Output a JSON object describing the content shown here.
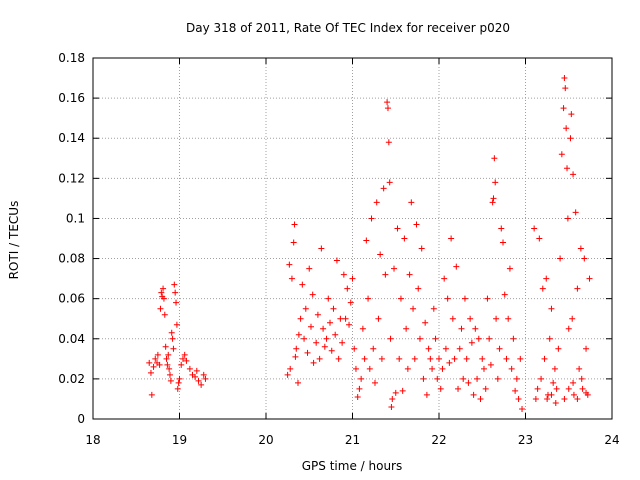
{
  "chart_data": {
    "type": "scatter",
    "title": "Day 318 of 2011, Rate Of TEC Index for receiver p020",
    "xlabel": "GPS time / hours",
    "ylabel": "ROTI / TECUs",
    "xlim": [
      18,
      24
    ],
    "ylim": [
      0,
      0.18
    ],
    "xticks": [
      "18",
      "19",
      "20",
      "21",
      "22",
      "23",
      "24"
    ],
    "yticks": [
      "0",
      "0.02",
      "0.04",
      "0.06",
      "0.08",
      "0.1",
      "0.12",
      "0.14",
      "0.16",
      "0.18"
    ],
    "grid": true,
    "marker": "+",
    "color": "#ff0000",
    "points": [
      [
        18.65,
        0.028
      ],
      [
        18.67,
        0.023
      ],
      [
        18.68,
        0.012
      ],
      [
        18.7,
        0.026
      ],
      [
        18.72,
        0.03
      ],
      [
        18.74,
        0.028
      ],
      [
        18.75,
        0.032
      ],
      [
        18.77,
        0.027
      ],
      [
        18.78,
        0.055
      ],
      [
        18.79,
        0.063
      ],
      [
        18.8,
        0.061
      ],
      [
        18.81,
        0.065
      ],
      [
        18.82,
        0.06
      ],
      [
        18.83,
        0.052
      ],
      [
        18.84,
        0.036
      ],
      [
        18.85,
        0.03
      ],
      [
        18.86,
        0.027
      ],
      [
        18.87,
        0.032
      ],
      [
        18.88,
        0.025
      ],
      [
        18.89,
        0.022
      ],
      [
        18.9,
        0.019
      ],
      [
        18.91,
        0.043
      ],
      [
        18.92,
        0.04
      ],
      [
        18.93,
        0.035
      ],
      [
        18.94,
        0.067
      ],
      [
        18.95,
        0.063
      ],
      [
        18.96,
        0.058
      ],
      [
        18.97,
        0.047
      ],
      [
        18.98,
        0.015
      ],
      [
        18.99,
        0.018
      ],
      [
        19.0,
        0.02
      ],
      [
        19.02,
        0.027
      ],
      [
        19.04,
        0.03
      ],
      [
        19.06,
        0.032
      ],
      [
        19.08,
        0.029
      ],
      [
        19.12,
        0.025
      ],
      [
        19.15,
        0.022
      ],
      [
        19.18,
        0.021
      ],
      [
        19.2,
        0.024
      ],
      [
        19.22,
        0.019
      ],
      [
        19.25,
        0.017
      ],
      [
        19.28,
        0.022
      ],
      [
        19.3,
        0.02
      ],
      [
        20.25,
        0.022
      ],
      [
        20.27,
        0.077
      ],
      [
        20.28,
        0.025
      ],
      [
        20.3,
        0.07
      ],
      [
        20.32,
        0.088
      ],
      [
        20.33,
        0.097
      ],
      [
        20.34,
        0.031
      ],
      [
        20.35,
        0.035
      ],
      [
        20.37,
        0.018
      ],
      [
        20.38,
        0.042
      ],
      [
        20.4,
        0.05
      ],
      [
        20.42,
        0.067
      ],
      [
        20.44,
        0.04
      ],
      [
        20.46,
        0.055
      ],
      [
        20.48,
        0.033
      ],
      [
        20.5,
        0.075
      ],
      [
        20.52,
        0.046
      ],
      [
        20.54,
        0.062
      ],
      [
        20.55,
        0.028
      ],
      [
        20.58,
        0.038
      ],
      [
        20.6,
        0.052
      ],
      [
        20.62,
        0.03
      ],
      [
        20.64,
        0.085
      ],
      [
        20.66,
        0.045
      ],
      [
        20.68,
        0.036
      ],
      [
        20.7,
        0.04
      ],
      [
        20.72,
        0.06
      ],
      [
        20.74,
        0.048
      ],
      [
        20.76,
        0.034
      ],
      [
        20.78,
        0.055
      ],
      [
        20.8,
        0.042
      ],
      [
        20.82,
        0.079
      ],
      [
        20.84,
        0.03
      ],
      [
        20.86,
        0.05
      ],
      [
        20.88,
        0.038
      ],
      [
        20.9,
        0.072
      ],
      [
        20.92,
        0.05
      ],
      [
        20.94,
        0.065
      ],
      [
        20.96,
        0.047
      ],
      [
        20.98,
        0.058
      ],
      [
        21.0,
        0.07
      ],
      [
        21.02,
        0.035
      ],
      [
        21.04,
        0.025
      ],
      [
        21.06,
        0.011
      ],
      [
        21.08,
        0.015
      ],
      [
        21.1,
        0.02
      ],
      [
        21.12,
        0.045
      ],
      [
        21.14,
        0.03
      ],
      [
        21.16,
        0.089
      ],
      [
        21.18,
        0.06
      ],
      [
        21.2,
        0.025
      ],
      [
        21.22,
        0.1
      ],
      [
        21.24,
        0.035
      ],
      [
        21.26,
        0.018
      ],
      [
        21.28,
        0.108
      ],
      [
        21.3,
        0.05
      ],
      [
        21.32,
        0.082
      ],
      [
        21.34,
        0.03
      ],
      [
        21.36,
        0.115
      ],
      [
        21.38,
        0.072
      ],
      [
        21.4,
        0.158
      ],
      [
        21.41,
        0.155
      ],
      [
        21.42,
        0.138
      ],
      [
        21.43,
        0.118
      ],
      [
        21.44,
        0.04
      ],
      [
        21.45,
        0.006
      ],
      [
        21.46,
        0.01
      ],
      [
        21.48,
        0.075
      ],
      [
        21.5,
        0.013
      ],
      [
        21.52,
        0.095
      ],
      [
        21.54,
        0.03
      ],
      [
        21.56,
        0.06
      ],
      [
        21.58,
        0.014
      ],
      [
        21.6,
        0.09
      ],
      [
        21.62,
        0.045
      ],
      [
        21.64,
        0.025
      ],
      [
        21.66,
        0.072
      ],
      [
        21.68,
        0.108
      ],
      [
        21.7,
        0.055
      ],
      [
        21.72,
        0.03
      ],
      [
        21.74,
        0.097
      ],
      [
        21.76,
        0.065
      ],
      [
        21.78,
        0.04
      ],
      [
        21.8,
        0.085
      ],
      [
        21.82,
        0.02
      ],
      [
        21.84,
        0.048
      ],
      [
        21.86,
        0.012
      ],
      [
        21.88,
        0.035
      ],
      [
        21.9,
        0.03
      ],
      [
        21.92,
        0.025
      ],
      [
        21.94,
        0.055
      ],
      [
        21.96,
        0.04
      ],
      [
        21.98,
        0.02
      ],
      [
        22.0,
        0.03
      ],
      [
        22.02,
        0.015
      ],
      [
        22.04,
        0.025
      ],
      [
        22.06,
        0.07
      ],
      [
        22.08,
        0.035
      ],
      [
        22.1,
        0.06
      ],
      [
        22.12,
        0.028
      ],
      [
        22.14,
        0.09
      ],
      [
        22.16,
        0.05
      ],
      [
        22.18,
        0.03
      ],
      [
        22.2,
        0.076
      ],
      [
        22.22,
        0.015
      ],
      [
        22.24,
        0.035
      ],
      [
        22.26,
        0.045
      ],
      [
        22.28,
        0.02
      ],
      [
        22.3,
        0.06
      ],
      [
        22.32,
        0.03
      ],
      [
        22.34,
        0.018
      ],
      [
        22.36,
        0.05
      ],
      [
        22.38,
        0.038
      ],
      [
        22.4,
        0.012
      ],
      [
        22.42,
        0.045
      ],
      [
        22.44,
        0.02
      ],
      [
        22.46,
        0.04
      ],
      [
        22.48,
        0.01
      ],
      [
        22.5,
        0.03
      ],
      [
        22.52,
        0.025
      ],
      [
        22.54,
        0.015
      ],
      [
        22.56,
        0.06
      ],
      [
        22.58,
        0.04
      ],
      [
        22.6,
        0.027
      ],
      [
        22.62,
        0.108
      ],
      [
        22.63,
        0.11
      ],
      [
        22.64,
        0.13
      ],
      [
        22.65,
        0.118
      ],
      [
        22.66,
        0.05
      ],
      [
        22.68,
        0.02
      ],
      [
        22.7,
        0.035
      ],
      [
        22.72,
        0.095
      ],
      [
        22.74,
        0.088
      ],
      [
        22.76,
        0.062
      ],
      [
        22.78,
        0.03
      ],
      [
        22.8,
        0.05
      ],
      [
        22.82,
        0.075
      ],
      [
        22.84,
        0.025
      ],
      [
        22.86,
        0.04
      ],
      [
        22.88,
        0.014
      ],
      [
        22.9,
        0.02
      ],
      [
        22.92,
        0.01
      ],
      [
        22.94,
        0.03
      ],
      [
        22.96,
        0.005
      ],
      [
        23.1,
        0.095
      ],
      [
        23.12,
        0.01
      ],
      [
        23.14,
        0.015
      ],
      [
        23.16,
        0.09
      ],
      [
        23.18,
        0.02
      ],
      [
        23.2,
        0.065
      ],
      [
        23.22,
        0.03
      ],
      [
        23.24,
        0.07
      ],
      [
        23.26,
        0.012
      ],
      [
        23.28,
        0.04
      ],
      [
        23.3,
        0.055
      ],
      [
        23.32,
        0.018
      ],
      [
        23.34,
        0.025
      ],
      [
        23.36,
        0.015
      ],
      [
        23.38,
        0.035
      ],
      [
        23.4,
        0.08
      ],
      [
        23.42,
        0.132
      ],
      [
        23.44,
        0.155
      ],
      [
        23.45,
        0.17
      ],
      [
        23.46,
        0.165
      ],
      [
        23.47,
        0.145
      ],
      [
        23.48,
        0.125
      ],
      [
        23.49,
        0.1
      ],
      [
        23.5,
        0.045
      ],
      [
        23.52,
        0.14
      ],
      [
        23.53,
        0.152
      ],
      [
        23.54,
        0.05
      ],
      [
        23.55,
        0.122
      ],
      [
        23.56,
        0.012
      ],
      [
        23.58,
        0.103
      ],
      [
        23.6,
        0.065
      ],
      [
        23.62,
        0.025
      ],
      [
        23.64,
        0.085
      ],
      [
        23.66,
        0.015
      ],
      [
        23.68,
        0.08
      ],
      [
        23.7,
        0.035
      ],
      [
        23.72,
        0.012
      ],
      [
        23.74,
        0.07
      ],
      [
        23.25,
        0.01
      ],
      [
        23.3,
        0.012
      ],
      [
        23.35,
        0.008
      ],
      [
        23.45,
        0.01
      ],
      [
        23.5,
        0.015
      ],
      [
        23.55,
        0.018
      ],
      [
        23.6,
        0.01
      ],
      [
        23.65,
        0.02
      ],
      [
        23.7,
        0.013
      ]
    ]
  }
}
